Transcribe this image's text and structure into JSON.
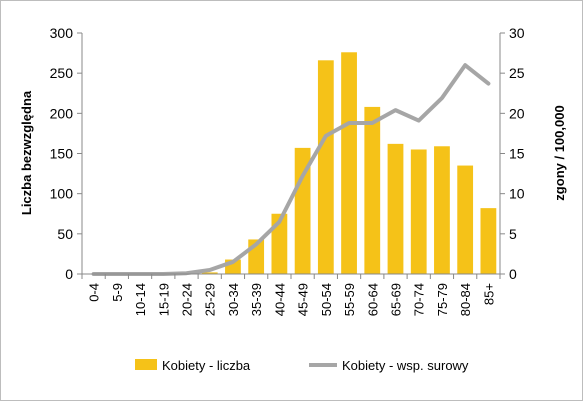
{
  "chart_data": {
    "type": "bar",
    "categories": [
      "0-4",
      "5-9",
      "10-14",
      "15-19",
      "20-24",
      "25-29",
      "30-34",
      "35-39",
      "40-44",
      "45-49",
      "50-54",
      "55-59",
      "60-64",
      "65-69",
      "70-74",
      "75-79",
      "80-84",
      "85+"
    ],
    "series": [
      {
        "name": "Kobiety - liczba",
        "type": "bar",
        "axis": "left",
        "color": "#f5c218",
        "values": [
          0,
          0,
          0,
          0,
          0,
          2,
          18,
          43,
          75,
          157,
          266,
          276,
          208,
          162,
          155,
          159,
          135,
          82
        ]
      },
      {
        "name": "Kobiety - wsp. surowy",
        "type": "line",
        "axis": "right",
        "color": "#a6a6a6",
        "values": [
          0,
          0,
          0,
          0,
          0.1,
          0.5,
          1.5,
          3.7,
          6.5,
          12.2,
          17.2,
          18.8,
          18.8,
          20.4,
          19.1,
          21.9,
          26.0,
          23.7
        ]
      }
    ],
    "ylabel": "Liczba bezwzględna",
    "y2label": "zgony / 100,000",
    "ylim": [
      0,
      300
    ],
    "y2lim": [
      0,
      30
    ],
    "yticks": [
      "0",
      "50",
      "100",
      "150",
      "200",
      "250",
      "300"
    ],
    "y2ticks": [
      "0",
      "5",
      "10",
      "15",
      "20",
      "25",
      "30"
    ],
    "grid": false,
    "legend": "bottom"
  }
}
